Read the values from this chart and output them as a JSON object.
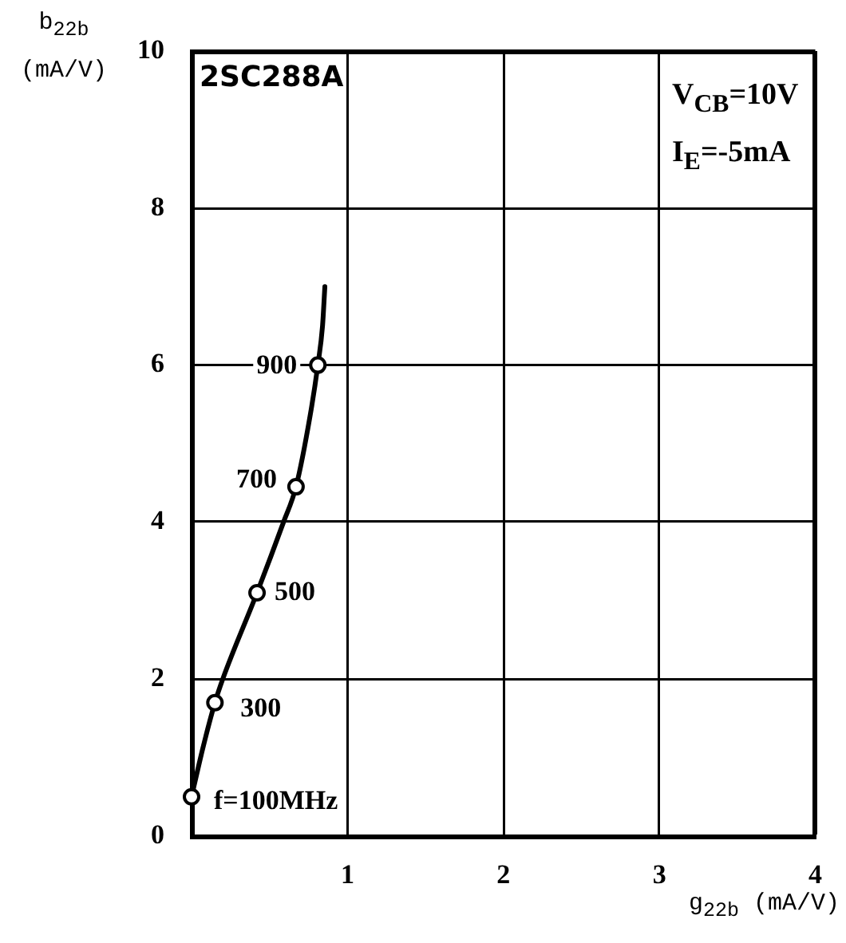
{
  "chart_data": {
    "type": "line",
    "title": "2SC288A",
    "xlabel": "g$_{22b}$ (mA/V)",
    "ylabel": "b$_{22b}$ (mA/V)",
    "annotations": [
      "V$_{CB}$=10V",
      "I$_{E}$=-5mA",
      {
        "text": "f=100MHz",
        "x": 0,
        "y": 0.5
      },
      {
        "text": "300",
        "x": 0.15,
        "y": 1.7
      },
      {
        "text": "500",
        "x": 0.42,
        "y": 3.1
      },
      {
        "text": "700",
        "x": 0.67,
        "y": 4.45
      },
      {
        "text": "900",
        "x": 0.81,
        "y": 6
      }
    ],
    "series": [
      {
        "type": "line",
        "color": "#000000",
        "marker": "none",
        "x": [
          0,
          0.07,
          0.15,
          0.2,
          0.42,
          0.59,
          0.67,
          0.76,
          0.81,
          0.84,
          0.855
        ],
        "values": [
          0.5,
          1.1,
          1.7,
          2,
          3.1,
          4,
          4.45,
          5.35,
          6,
          6.5,
          7
        ]
      },
      {
        "type": "scatter",
        "color": "#000000",
        "marker": "circle",
        "x": [
          0,
          0.15,
          0.42,
          0.67,
          0.81
        ],
        "values": [
          0.5,
          1.7,
          3.1,
          4.45,
          6
        ]
      }
    ],
    "xlim": [
      0,
      4
    ],
    "ylim": [
      0,
      10
    ],
    "xticks": [
      1,
      2,
      3,
      4
    ],
    "yticks": [
      0,
      2,
      4,
      6,
      8,
      10
    ],
    "grid": true
  }
}
